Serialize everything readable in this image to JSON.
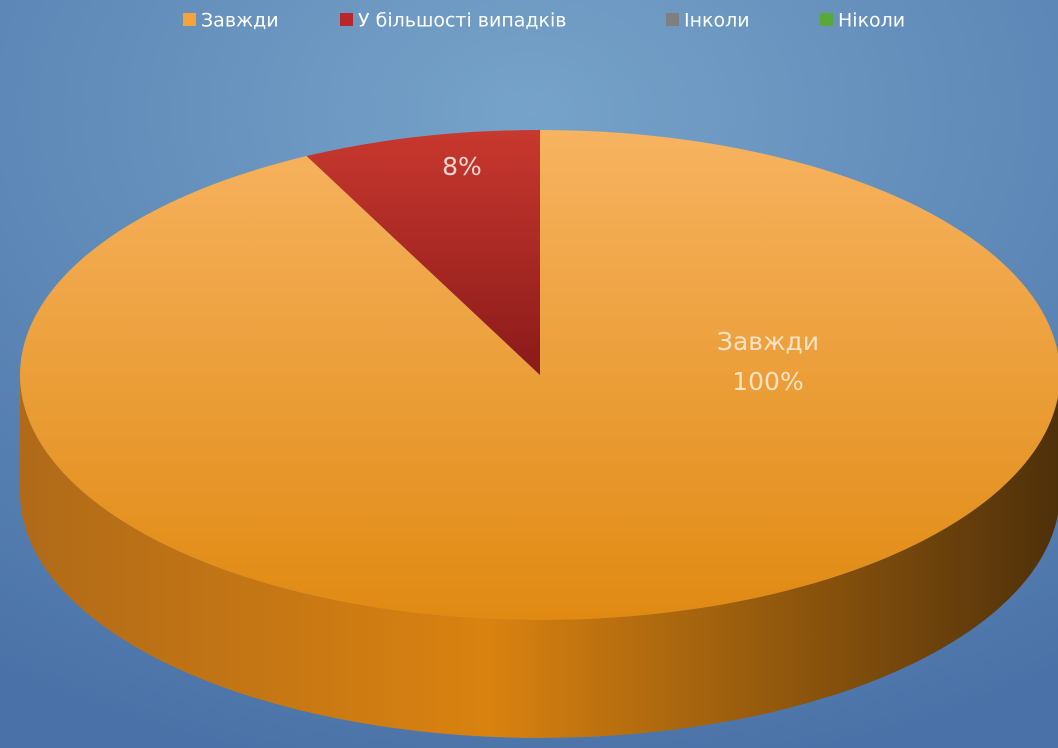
{
  "chart_data": {
    "type": "pie3d",
    "categories": [
      "Завжди",
      "У більшості випадків",
      "Інколи",
      "Ніколи"
    ],
    "values": [
      100,
      8,
      0,
      0
    ],
    "value_labels": [
      "100%",
      "8%",
      null,
      null
    ],
    "colors": [
      "#f5a33a",
      "#b8282a",
      "#7f7f7f",
      "#5aa83c"
    ],
    "legend": "top"
  }
}
